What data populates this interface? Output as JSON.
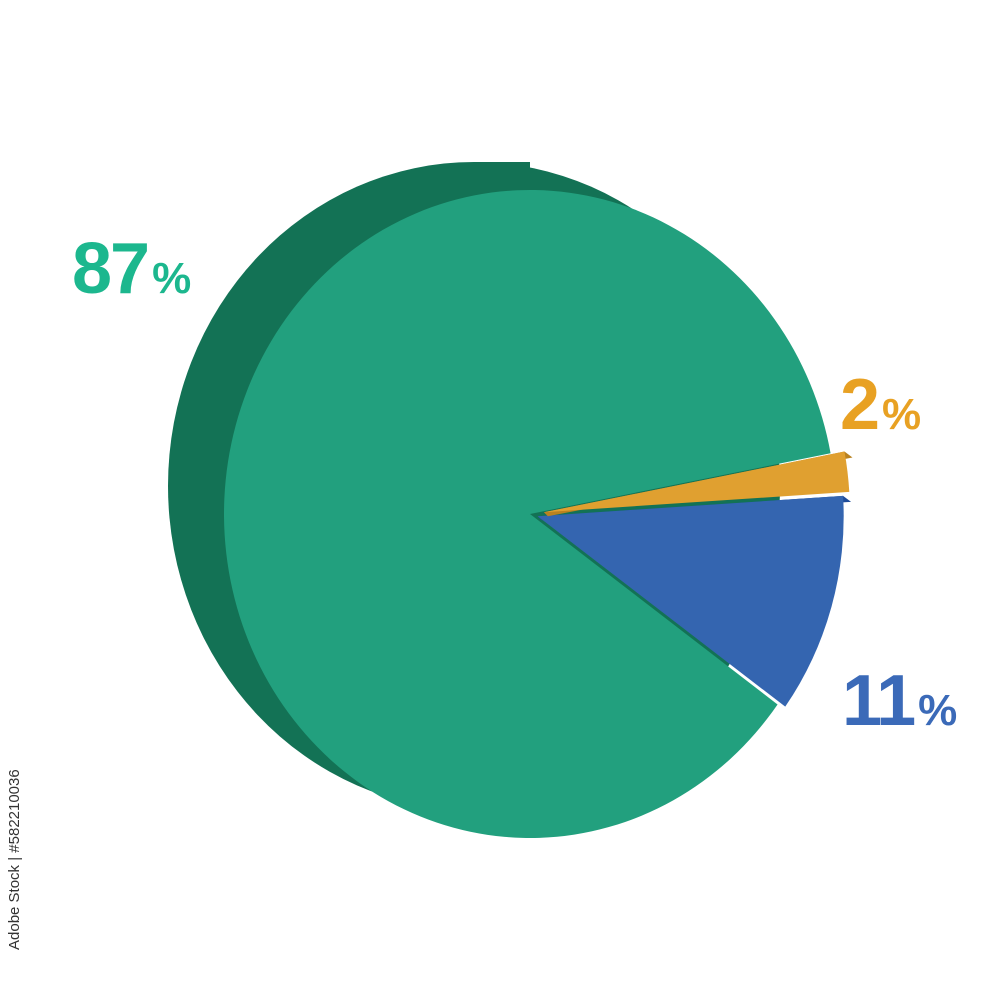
{
  "chart_data": {
    "type": "pie",
    "style": "3d",
    "slices": [
      {
        "label": "87",
        "value": 87,
        "color": "#22a07e",
        "side_color": "#137255"
      },
      {
        "label": "2",
        "value": 2,
        "color": "#e0a030",
        "side_color": "#b98220"
      },
      {
        "label": "11",
        "value": 11,
        "color": "#3465b0",
        "side_color": "#1f4c9a"
      }
    ],
    "label_colors": {
      "87": "#1cb78e",
      "2": "#e8a123",
      "11": "#3b6ab8"
    },
    "percent_sign": "%"
  },
  "watermark": "Adobe Stock | #582210036"
}
